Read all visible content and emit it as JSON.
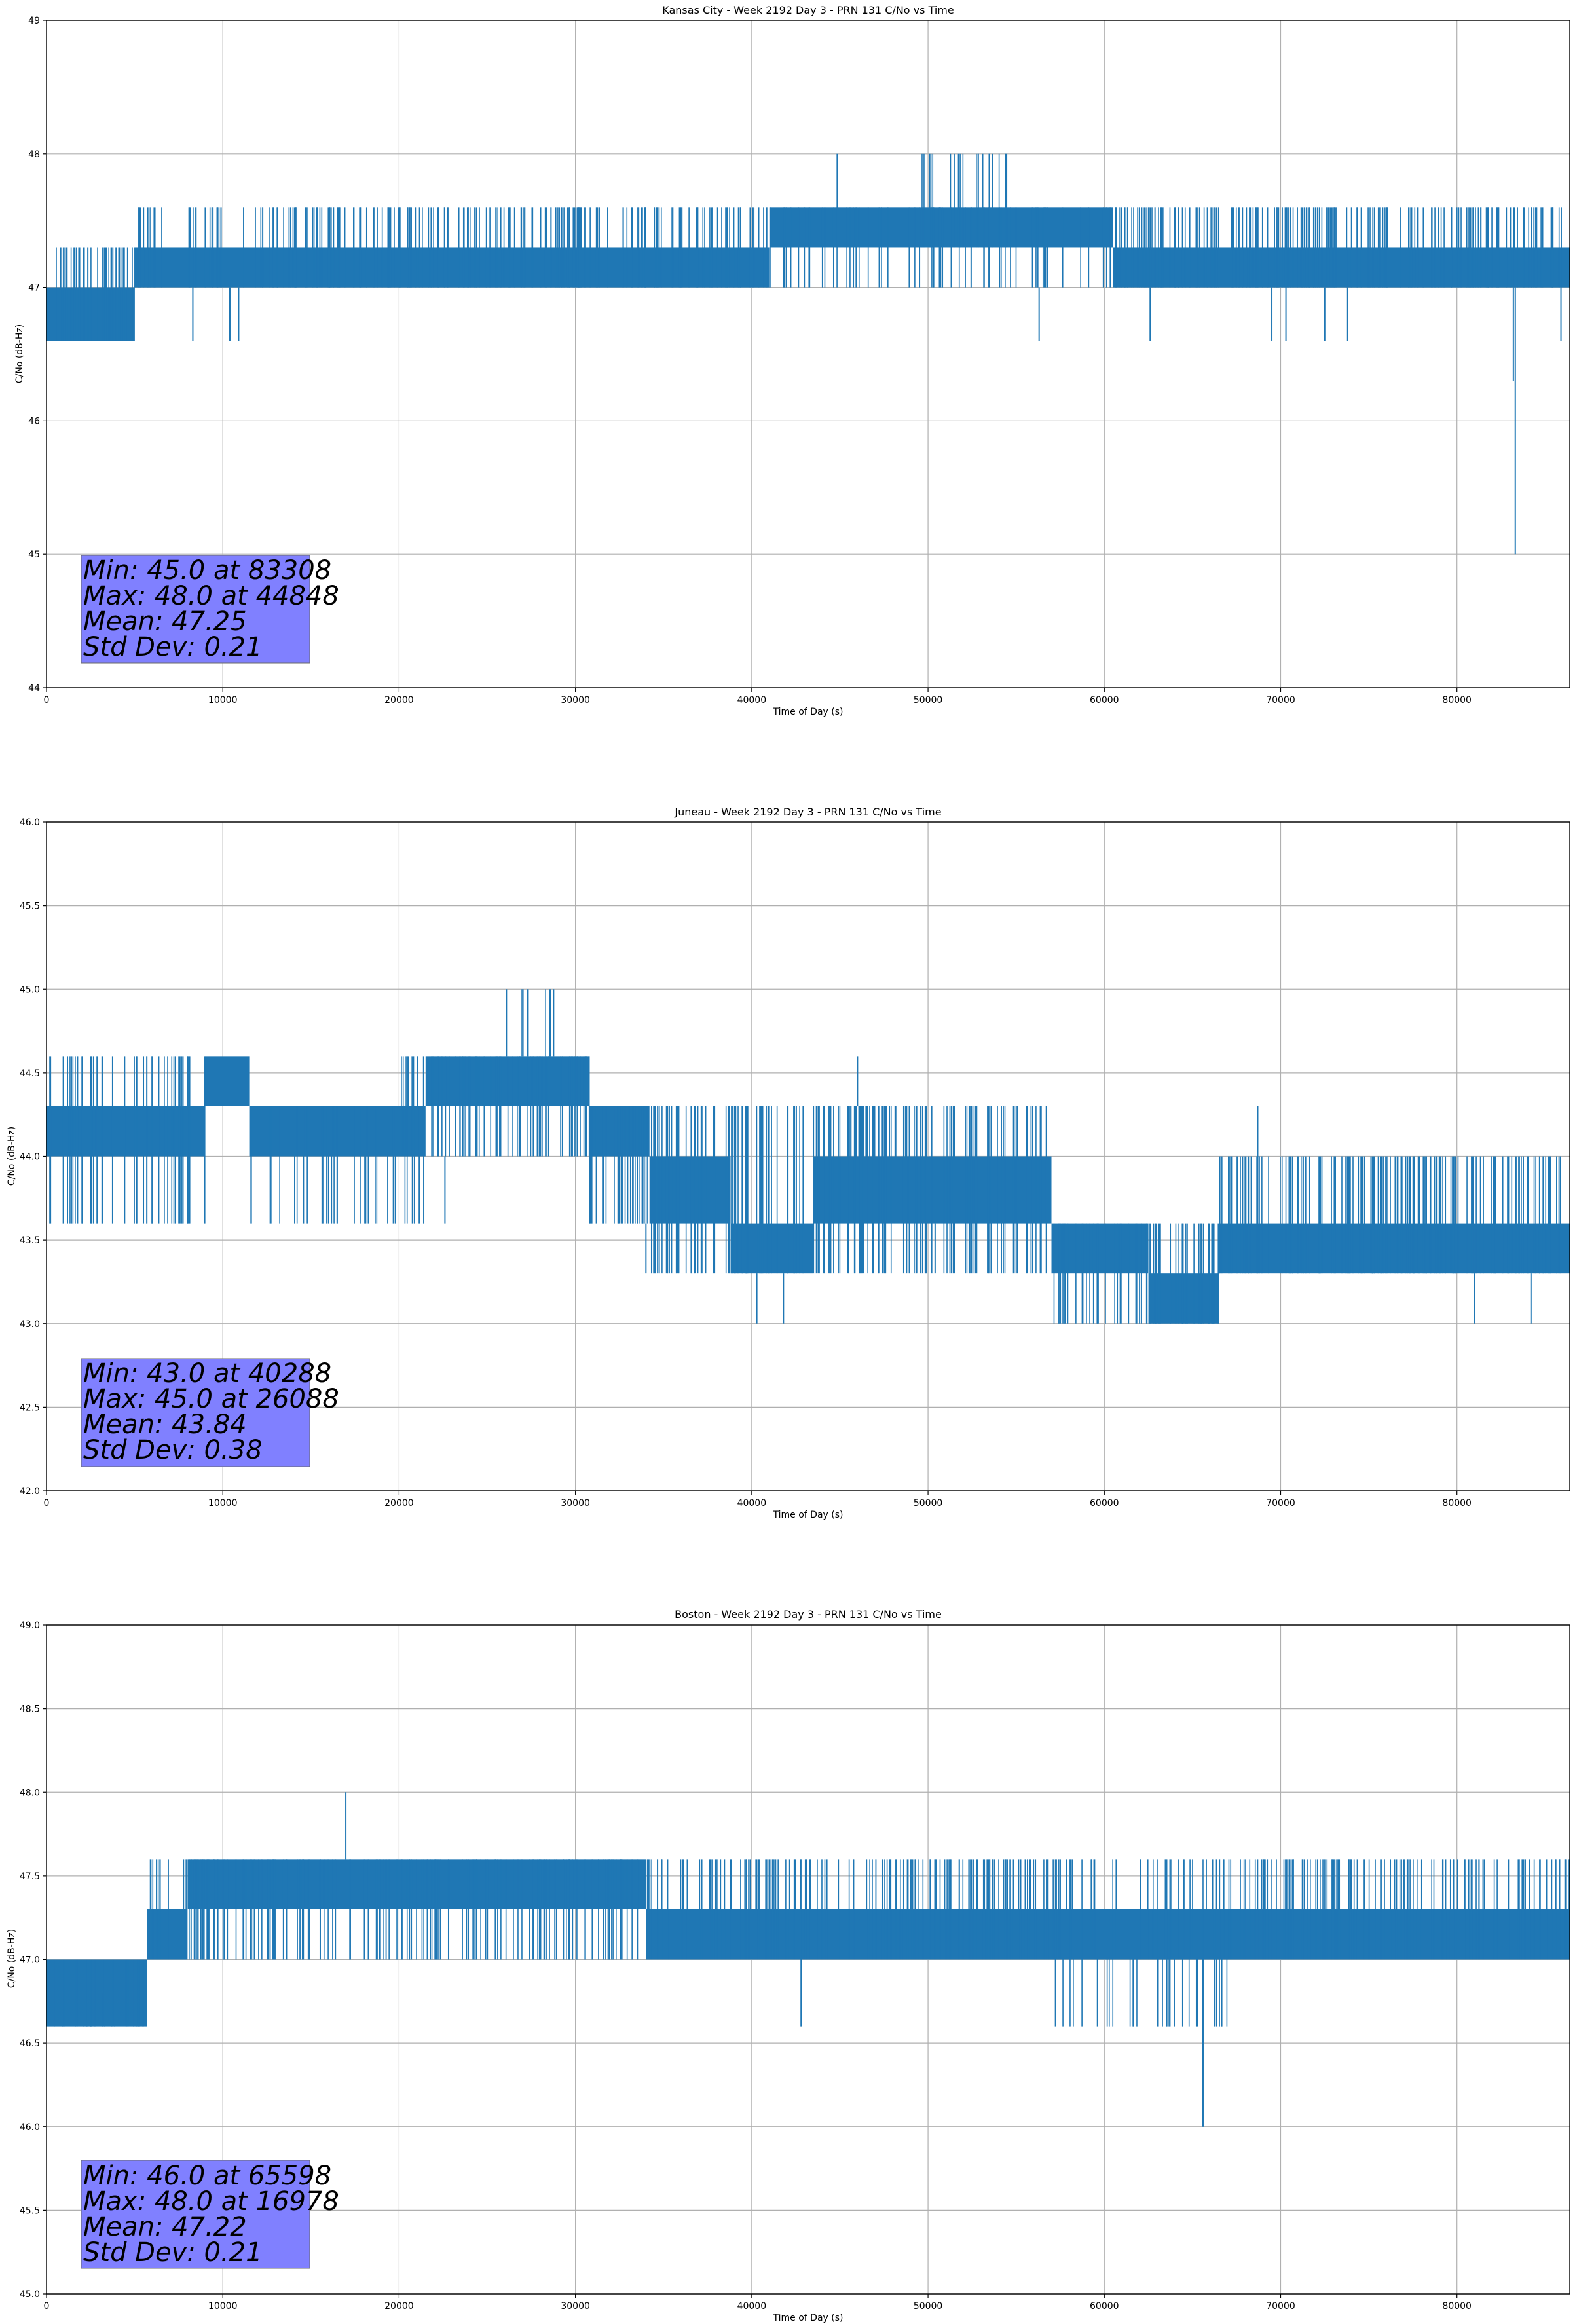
{
  "figure": {
    "background": "#ffffff",
    "line_color": "#1f77b4",
    "stats_box_color": "#8080ff",
    "grid_color": "#b0b0b0"
  },
  "chart_data": [
    {
      "type": "line",
      "title": "Kansas City - Week 2192 Day 3 - PRN 131 C/No vs Time",
      "xlabel": "Time of Day (s)",
      "ylabel": "C/No (dB-Hz)",
      "xlim": [
        0,
        86400
      ],
      "ylim": [
        44,
        49
      ],
      "xticks": [
        0,
        10000,
        20000,
        30000,
        40000,
        50000,
        60000,
        70000,
        80000
      ],
      "xtick_labels": [
        "0",
        "10000",
        "20000",
        "30000",
        "40000",
        "50000",
        "60000",
        "70000",
        "80000"
      ],
      "yticks": [
        44,
        45,
        46,
        47,
        48,
        49
      ],
      "ytick_labels": [
        "44",
        "45",
        "46",
        "47",
        "48",
        "49"
      ],
      "grid": true,
      "series": [
        {
          "name": "C/No",
          "color": "#1f77b4",
          "bands": [
            {
              "x0": 0,
              "x1": 5000,
              "lo": 46.6,
              "hi": 47.0
            },
            {
              "x0": 5000,
              "x1": 41000,
              "lo": 47.0,
              "hi": 47.3
            },
            {
              "x0": 41000,
              "x1": 60500,
              "lo": 47.3,
              "hi": 47.6
            },
            {
              "x0": 60500,
              "x1": 86400,
              "lo": 47.0,
              "hi": 47.3
            }
          ],
          "flicker": [
            {
              "x0": 0,
              "x1": 5000,
              "lo": 46.6,
              "hi": 47.3,
              "n": 40
            },
            {
              "x0": 5000,
              "x1": 41000,
              "lo": 47.0,
              "hi": 47.6,
              "n": 220
            },
            {
              "x0": 41000,
              "x1": 60500,
              "lo": 47.0,
              "hi": 47.6,
              "n": 60
            },
            {
              "x0": 49500,
              "x1": 54500,
              "lo": 47.3,
              "hi": 48.0,
              "n": 22
            },
            {
              "x0": 60500,
              "x1": 86400,
              "lo": 47.0,
              "hi": 47.6,
              "n": 180
            }
          ],
          "spikes": [
            {
              "x": 8300,
              "lo": 46.6,
              "hi": 47.0
            },
            {
              "x": 10400,
              "lo": 46.6,
              "hi": 47.0
            },
            {
              "x": 10900,
              "lo": 46.6,
              "hi": 47.0
            },
            {
              "x": 44848,
              "lo": 47.3,
              "hi": 48.0
            },
            {
              "x": 56300,
              "lo": 46.6,
              "hi": 47.0
            },
            {
              "x": 62600,
              "lo": 46.6,
              "hi": 47.0
            },
            {
              "x": 69500,
              "lo": 46.6,
              "hi": 47.0
            },
            {
              "x": 70300,
              "lo": 46.6,
              "hi": 47.0
            },
            {
              "x": 72500,
              "lo": 46.6,
              "hi": 47.0
            },
            {
              "x": 73800,
              "lo": 46.6,
              "hi": 47.0
            },
            {
              "x": 83200,
              "lo": 46.3,
              "hi": 47.0
            },
            {
              "x": 83308,
              "lo": 45.0,
              "hi": 47.0
            },
            {
              "x": 85900,
              "lo": 46.6,
              "hi": 47.0
            }
          ]
        }
      ],
      "stats": [
        "Min: 45.0 at 83308",
        "Max: 48.0 at 44848",
        "Mean: 47.25",
        "Std Dev: 0.21"
      ]
    },
    {
      "type": "line",
      "title": "Juneau - Week 2192 Day 3 - PRN 131 C/No vs Time",
      "xlabel": "Time of Day (s)",
      "ylabel": "C/No (dB-Hz)",
      "xlim": [
        0,
        86400
      ],
      "ylim": [
        42.0,
        46.0
      ],
      "xticks": [
        0,
        10000,
        20000,
        30000,
        40000,
        50000,
        60000,
        70000,
        80000
      ],
      "xtick_labels": [
        "0",
        "10000",
        "20000",
        "30000",
        "40000",
        "50000",
        "60000",
        "70000",
        "80000"
      ],
      "yticks": [
        42.0,
        42.5,
        43.0,
        43.5,
        44.0,
        44.5,
        45.0,
        45.5,
        46.0
      ],
      "ytick_labels": [
        "42.0",
        "42.5",
        "43.0",
        "43.5",
        "44.0",
        "44.5",
        "45.0",
        "45.5",
        "46.0"
      ],
      "grid": true,
      "series": [
        {
          "name": "C/No",
          "color": "#1f77b4",
          "bands": [
            {
              "x0": 0,
              "x1": 9000,
              "lo": 44.0,
              "hi": 44.3
            },
            {
              "x0": 9000,
              "x1": 11500,
              "lo": 44.3,
              "hi": 44.6
            },
            {
              "x0": 11500,
              "x1": 21500,
              "lo": 44.0,
              "hi": 44.3
            },
            {
              "x0": 21500,
              "x1": 30800,
              "lo": 44.3,
              "hi": 44.6
            },
            {
              "x0": 30800,
              "x1": 34200,
              "lo": 44.0,
              "hi": 44.3
            },
            {
              "x0": 34200,
              "x1": 38800,
              "lo": 43.6,
              "hi": 44.0
            },
            {
              "x0": 38800,
              "x1": 43500,
              "lo": 43.3,
              "hi": 43.6
            },
            {
              "x0": 43500,
              "x1": 57000,
              "lo": 43.6,
              "hi": 44.0
            },
            {
              "x0": 57000,
              "x1": 62500,
              "lo": 43.3,
              "hi": 43.6
            },
            {
              "x0": 62500,
              "x1": 66500,
              "lo": 43.0,
              "hi": 43.3
            },
            {
              "x0": 66500,
              "x1": 86400,
              "lo": 43.3,
              "hi": 43.6
            }
          ],
          "flicker": [
            {
              "x0": 0,
              "x1": 9000,
              "lo": 43.6,
              "hi": 44.6,
              "n": 45
            },
            {
              "x0": 11500,
              "x1": 21500,
              "lo": 43.6,
              "hi": 44.3,
              "n": 35
            },
            {
              "x0": 19500,
              "x1": 31000,
              "lo": 44.0,
              "hi": 44.6,
              "n": 70
            },
            {
              "x0": 26000,
              "x1": 29500,
              "lo": 44.6,
              "hi": 45.0,
              "n": 7
            },
            {
              "x0": 30800,
              "x1": 34200,
              "lo": 43.6,
              "hi": 44.3,
              "n": 30
            },
            {
              "x0": 34200,
              "x1": 43500,
              "lo": 43.3,
              "hi": 44.3,
              "n": 70
            },
            {
              "x0": 43500,
              "x1": 57000,
              "lo": 43.3,
              "hi": 44.3,
              "n": 80
            },
            {
              "x0": 45500,
              "x1": 49000,
              "lo": 44.0,
              "hi": 44.3,
              "n": 25
            },
            {
              "x0": 57000,
              "x1": 66500,
              "lo": 43.0,
              "hi": 43.6,
              "n": 60
            },
            {
              "x0": 66500,
              "x1": 86400,
              "lo": 43.3,
              "hi": 44.0,
              "n": 160
            }
          ],
          "spikes": [
            {
              "x": 26088,
              "lo": 44.6,
              "hi": 45.0
            },
            {
              "x": 40288,
              "lo": 43.0,
              "hi": 43.3
            },
            {
              "x": 41800,
              "lo": 43.0,
              "hi": 43.3
            },
            {
              "x": 46000,
              "lo": 44.3,
              "hi": 44.6
            },
            {
              "x": 34000,
              "lo": 43.3,
              "hi": 43.6
            },
            {
              "x": 50400,
              "lo": 43.3,
              "hi": 43.6
            },
            {
              "x": 62000,
              "lo": 43.0,
              "hi": 43.3
            },
            {
              "x": 68700,
              "lo": 44.0,
              "hi": 44.3
            },
            {
              "x": 81000,
              "lo": 43.0,
              "hi": 43.3
            },
            {
              "x": 84200,
              "lo": 43.0,
              "hi": 43.3
            },
            {
              "x": 22600,
              "lo": 43.6,
              "hi": 44.0
            },
            {
              "x": 16000,
              "lo": 43.6,
              "hi": 44.0
            }
          ]
        }
      ],
      "stats": [
        "Min: 43.0 at 40288",
        "Max: 45.0 at 26088",
        "Mean: 43.84",
        "Std Dev: 0.38"
      ]
    },
    {
      "type": "line",
      "title": "Boston - Week 2192 Day 3 - PRN 131 C/No vs Time",
      "xlabel": "Time of Day (s)",
      "ylabel": "C/No (dB-Hz)",
      "xlim": [
        0,
        86400
      ],
      "ylim": [
        45.0,
        49.0
      ],
      "xticks": [
        0,
        10000,
        20000,
        30000,
        40000,
        50000,
        60000,
        70000,
        80000
      ],
      "xtick_labels": [
        "0",
        "10000",
        "20000",
        "30000",
        "40000",
        "50000",
        "60000",
        "70000",
        "80000"
      ],
      "yticks": [
        45.0,
        45.5,
        46.0,
        46.5,
        47.0,
        47.5,
        48.0,
        48.5,
        49.0
      ],
      "ytick_labels": [
        "45.0",
        "45.5",
        "46.0",
        "46.5",
        "47.0",
        "47.5",
        "48.0",
        "48.5",
        "49.0"
      ],
      "grid": true,
      "series": [
        {
          "name": "C/No",
          "color": "#1f77b4",
          "bands": [
            {
              "x0": 0,
              "x1": 5700,
              "lo": 46.6,
              "hi": 47.0
            },
            {
              "x0": 5700,
              "x1": 8000,
              "lo": 47.0,
              "hi": 47.3
            },
            {
              "x0": 8000,
              "x1": 34000,
              "lo": 47.3,
              "hi": 47.6
            },
            {
              "x0": 34000,
              "x1": 86400,
              "lo": 47.0,
              "hi": 47.3
            }
          ],
          "flicker": [
            {
              "x0": 0,
              "x1": 5700,
              "lo": 46.6,
              "hi": 47.0,
              "n": 25
            },
            {
              "x0": 5700,
              "x1": 8000,
              "lo": 47.0,
              "hi": 47.6,
              "n": 10
            },
            {
              "x0": 8000,
              "x1": 34000,
              "lo": 47.0,
              "hi": 47.6,
              "n": 160
            },
            {
              "x0": 34000,
              "x1": 86400,
              "lo": 47.0,
              "hi": 47.6,
              "n": 300
            },
            {
              "x0": 57000,
              "x1": 67000,
              "lo": 46.6,
              "hi": 47.0,
              "n": 30
            }
          ],
          "spikes": [
            {
              "x": 16978,
              "lo": 47.6,
              "hi": 48.0
            },
            {
              "x": 42800,
              "lo": 46.6,
              "hi": 47.0
            },
            {
              "x": 65598,
              "lo": 46.0,
              "hi": 47.0
            },
            {
              "x": 3200,
              "lo": 46.6,
              "hi": 46.8
            }
          ]
        }
      ],
      "stats": [
        "Min: 46.0 at 65598",
        "Max: 48.0 at 16978",
        "Mean: 47.22",
        "Std Dev: 0.21"
      ]
    }
  ]
}
